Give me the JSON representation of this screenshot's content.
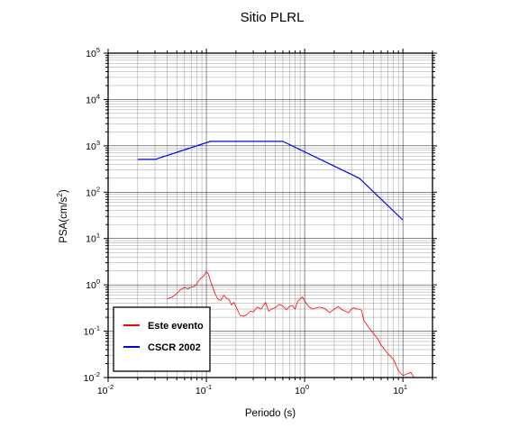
{
  "chart_data": {
    "type": "line",
    "title": "Sitio PLRL",
    "xlabel": "Periodo (s)",
    "ylabel": {
      "base": "PSA(cm/s",
      "sup": "2",
      "close": ")"
    },
    "xscale": "log",
    "yscale": "log",
    "xlim": [
      0.01,
      20
    ],
    "ylim": [
      0.01,
      100000
    ],
    "grid": true,
    "legend_position": "bottom-left",
    "x_ticks": [
      {
        "base": "10",
        "exp": "-2",
        "value": 0.01
      },
      {
        "base": "10",
        "exp": "-1",
        "value": 0.1
      },
      {
        "base": "10",
        "exp": "0",
        "value": 1
      },
      {
        "base": "10",
        "exp": "1",
        "value": 10
      }
    ],
    "y_ticks": [
      {
        "base": "10",
        "exp": "-2",
        "value": 0.01
      },
      {
        "base": "10",
        "exp": "-1",
        "value": 0.1
      },
      {
        "base": "10",
        "exp": "0",
        "value": 1
      },
      {
        "base": "10",
        "exp": "1",
        "value": 10
      },
      {
        "base": "10",
        "exp": "2",
        "value": 100
      },
      {
        "base": "10",
        "exp": "3",
        "value": 1000
      },
      {
        "base": "10",
        "exp": "4",
        "value": 10000
      },
      {
        "base": "10",
        "exp": "5",
        "value": 100000
      }
    ],
    "series": [
      {
        "name": "Este evento",
        "color": "#ff0000",
        "x": [
          0.04,
          0.045,
          0.05,
          0.055,
          0.06,
          0.065,
          0.07,
          0.075,
          0.08,
          0.085,
          0.09,
          0.095,
          0.1,
          0.105,
          0.11,
          0.115,
          0.12,
          0.13,
          0.14,
          0.15,
          0.16,
          0.17,
          0.18,
          0.19,
          0.2,
          0.22,
          0.24,
          0.26,
          0.28,
          0.3,
          0.33,
          0.36,
          0.4,
          0.43,
          0.46,
          0.5,
          0.55,
          0.6,
          0.65,
          0.7,
          0.75,
          0.8,
          0.85,
          0.9,
          0.95,
          1.0,
          1.1,
          1.2,
          1.4,
          1.6,
          1.8,
          2.0,
          2.2,
          2.4,
          2.6,
          2.8,
          3.0,
          3.2,
          3.4,
          3.6,
          3.8,
          4.0,
          4.5,
          5.0,
          5.5,
          6.0,
          6.5,
          7.0,
          8.0,
          9.0,
          10.0,
          11.0,
          12.0,
          13.0
        ],
        "y": [
          0.5,
          0.55,
          0.65,
          0.8,
          0.88,
          0.82,
          0.9,
          0.92,
          1.05,
          1.3,
          1.45,
          1.6,
          1.95,
          1.7,
          1.2,
          0.95,
          0.72,
          0.5,
          0.46,
          0.6,
          0.52,
          0.48,
          0.37,
          0.42,
          0.34,
          0.22,
          0.21,
          0.23,
          0.27,
          0.26,
          0.33,
          0.3,
          0.42,
          0.27,
          0.3,
          0.32,
          0.38,
          0.35,
          0.29,
          0.34,
          0.36,
          0.3,
          0.44,
          0.5,
          0.55,
          0.45,
          0.34,
          0.3,
          0.33,
          0.31,
          0.25,
          0.3,
          0.34,
          0.29,
          0.27,
          0.25,
          0.3,
          0.32,
          0.3,
          0.3,
          0.28,
          0.17,
          0.12,
          0.09,
          0.07,
          0.05,
          0.04,
          0.033,
          0.025,
          0.014,
          0.011,
          0.012,
          0.013,
          0.01
        ]
      },
      {
        "name": "CSCR 2002",
        "color": "#0000ff",
        "x": [
          0.02,
          0.03,
          0.11,
          0.6,
          3.6,
          10.0
        ],
        "y": [
          510,
          510,
          1250,
          1250,
          200,
          25
        ]
      }
    ]
  }
}
